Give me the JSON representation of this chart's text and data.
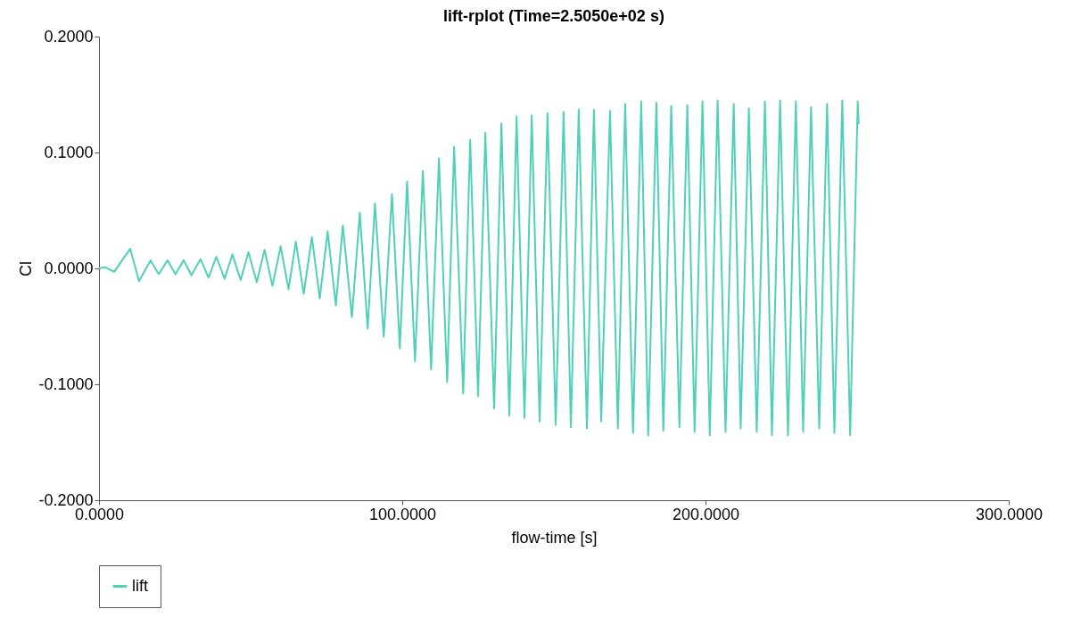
{
  "chart_data": {
    "type": "line",
    "title": "lift-rplot (Time=2.5050e+02 s)",
    "xlabel": "flow-time [s]",
    "ylabel": "Cl",
    "xlim": [
      0,
      300
    ],
    "ylim": [
      -0.2,
      0.2
    ],
    "xticks": [
      {
        "value": 0,
        "label": "0.0000"
      },
      {
        "value": 100,
        "label": "100.0000"
      },
      {
        "value": 200,
        "label": "200.0000"
      },
      {
        "value": 300,
        "label": "300.0000"
      }
    ],
    "yticks": [
      {
        "value": -0.2,
        "label": "-0.2000"
      },
      {
        "value": -0.1,
        "label": "-0.1000"
      },
      {
        "value": 0,
        "label": "0.0000"
      },
      {
        "value": 0.1,
        "label": "0.1000"
      },
      {
        "value": 0.2,
        "label": "0.2000"
      }
    ],
    "grid": false,
    "legend": "bottom",
    "marker": "none",
    "line_style": "solid",
    "series": [
      {
        "name": "lift",
        "color": "#4fd1b7",
        "x": [
          0,
          2,
          5,
          10.3,
          13.2,
          17.0,
          19.7,
          22.6,
          25.2,
          27.9,
          30.5,
          33.5,
          36.1,
          38.7,
          41.4,
          44.0,
          46.7,
          49.3,
          52.0,
          54.6,
          57.2,
          59.9,
          62.5,
          64.9,
          67.5,
          70.2,
          72.8,
          75.4,
          78.1,
          80.4,
          83.4,
          86.0,
          88.6,
          91.0,
          93.9,
          96.6,
          99.2,
          101.6,
          104.2,
          106.8,
          109.5,
          112.1,
          114.8,
          117.1,
          120.1,
          122.4,
          125.0,
          127.4,
          130.3,
          132.7,
          135.3,
          137.7,
          140.3,
          142.7,
          145.3,
          147.9,
          150.6,
          153.2,
          155.6,
          158.2,
          160.9,
          163.2,
          165.6,
          168.5,
          171.1,
          173.5,
          176.1,
          178.8,
          181.1,
          183.8,
          186.1,
          188.7,
          191.4,
          194.0,
          196.4,
          199.0,
          201.4,
          204.0,
          206.6,
          209.3,
          211.6,
          214.3,
          216.9,
          219.6,
          221.9,
          224.6,
          227.2,
          229.8,
          232.2,
          234.8,
          237.5,
          240.1,
          242.5,
          245.1,
          247.7,
          250.2,
          250.5
        ],
        "values": [
          0,
          0.001,
          -0.003,
          0.017,
          -0.011,
          0.007,
          -0.005,
          0.007,
          -0.005,
          0.007,
          -0.006,
          0.008,
          -0.008,
          0.01,
          -0.009,
          0.012,
          -0.01,
          0.014,
          -0.012,
          0.016,
          -0.015,
          0.019,
          -0.018,
          0.023,
          -0.022,
          0.027,
          -0.026,
          0.032,
          -0.032,
          0.037,
          -0.042,
          0.048,
          -0.052,
          0.056,
          -0.059,
          0.064,
          -0.069,
          0.075,
          -0.08,
          0.084,
          -0.087,
          0.095,
          -0.098,
          0.105,
          -0.108,
          0.111,
          -0.11,
          0.117,
          -0.121,
          0.125,
          -0.127,
          0.131,
          -0.129,
          0.132,
          -0.132,
          0.134,
          -0.135,
          0.135,
          -0.137,
          0.137,
          -0.138,
          0.137,
          -0.132,
          0.136,
          -0.138,
          0.142,
          -0.142,
          0.144,
          -0.144,
          0.143,
          -0.14,
          0.14,
          -0.137,
          0.141,
          -0.141,
          0.144,
          -0.144,
          0.145,
          -0.141,
          0.142,
          -0.138,
          0.138,
          -0.141,
          0.144,
          -0.144,
          0.145,
          -0.144,
          0.144,
          -0.141,
          0.139,
          -0.138,
          0.142,
          -0.142,
          0.145,
          -0.144,
          0.144,
          0.125
        ]
      }
    ]
  }
}
